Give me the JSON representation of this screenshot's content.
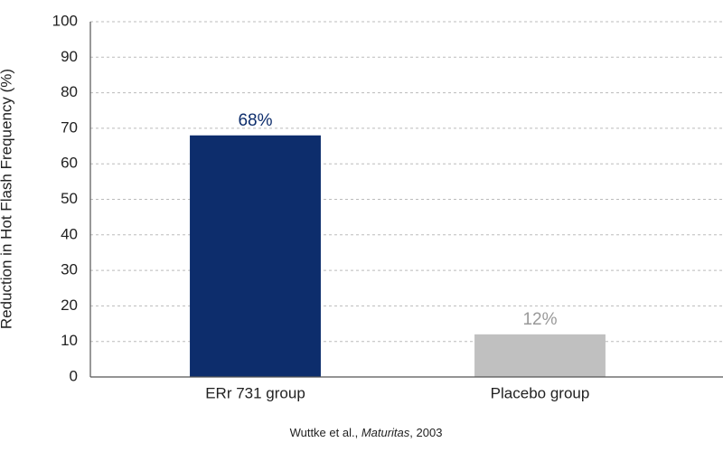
{
  "chart_data": {
    "type": "bar",
    "y_label": "Reduction in Hot Flash Frequency (%)",
    "categories": [
      "ERr 731 group",
      "Placebo group"
    ],
    "values": [
      68,
      12
    ],
    "value_labels": [
      "68%",
      "12%"
    ],
    "colors": [
      "#0d2d6c",
      "#c0c0c0"
    ],
    "ylim": [
      0,
      100
    ],
    "yticks": [
      0,
      10,
      20,
      30,
      40,
      50,
      60,
      70,
      80,
      90,
      100
    ],
    "grid": true,
    "source": [
      "Wuttke et al., ",
      "Maturitas",
      ", 2003"
    ]
  }
}
